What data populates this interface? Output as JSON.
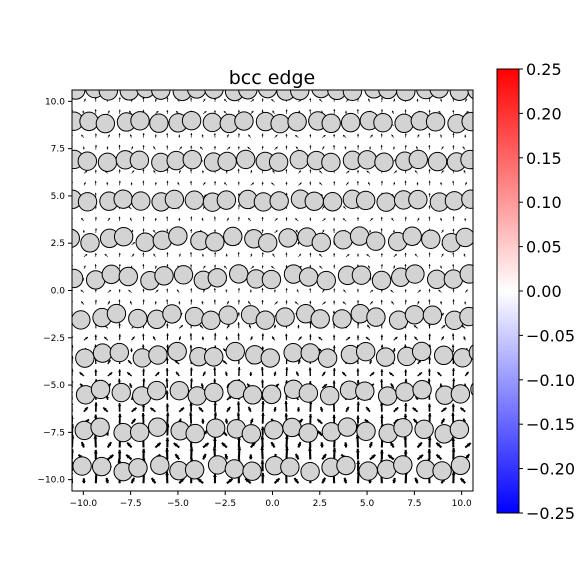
{
  "chart_data": {
    "type": "scatter",
    "title": "bcc edge",
    "xlabel": "",
    "ylabel": "",
    "xlim": [
      -10.6,
      10.6
    ],
    "ylim": [
      -10.6,
      10.6
    ],
    "x_ticks": [
      -10.0,
      -7.5,
      -5.0,
      -2.5,
      0.0,
      2.5,
      5.0,
      7.5,
      10.0
    ],
    "y_ticks": [
      -10.0,
      -7.5,
      -5.0,
      -2.5,
      0.0,
      2.5,
      5.0,
      7.5,
      10.0
    ],
    "x_tick_labels": [
      "−10.0",
      "−7.5",
      "−5.0",
      "−2.5",
      "0.0",
      "2.5",
      "5.0",
      "7.5",
      "10.0"
    ],
    "y_tick_labels": [
      "−10.0",
      "−7.5",
      "−5.0",
      "−2.5",
      "0.0",
      "2.5",
      "5.0",
      "7.5",
      "10.0"
    ],
    "grid": false,
    "atom_color": "#d3d3d3",
    "atom_edge_color": "#000000",
    "arrow_color": "#000000",
    "atom_rows": [
      {
        "y": 10.6,
        "x_start": -10.4,
        "dx": 0.92,
        "n": 24
      },
      {
        "y": 8.9,
        "x_start": -10.6,
        "dx": 0.92,
        "n": 24
      },
      {
        "y": 6.85,
        "x_start": -10.6,
        "dx": 0.92,
        "n": 24
      },
      {
        "y": 4.75,
        "x_start": -10.6,
        "dx": 0.92,
        "n": 24
      },
      {
        "y": 2.7,
        "x_start": -10.6,
        "dx": 0.95,
        "n": 23
      },
      {
        "y": 0.7,
        "x_start": -10.4,
        "dx": 0.95,
        "n": 23
      },
      {
        "y": -1.4,
        "x_start": -10.1,
        "dx": 0.98,
        "n": 22
      },
      {
        "y": -3.4,
        "x_start": -10.0,
        "dx": 1.0,
        "n": 22
      },
      {
        "y": -5.4,
        "x_start": -10.0,
        "dx": 1.0,
        "n": 22
      },
      {
        "y": -7.4,
        "x_start": -10.0,
        "dx": 1.0,
        "n": 22
      },
      {
        "y": -9.4,
        "x_start": -10.0,
        "dx": 1.0,
        "n": 22
      }
    ],
    "colorbar": {
      "colormap": "bwr",
      "vmin": -0.25,
      "vmax": 0.25,
      "ticks": [
        0.25,
        0.2,
        0.15,
        0.1,
        0.05,
        0.0,
        -0.05,
        -0.1,
        -0.15,
        -0.2,
        -0.25
      ],
      "tick_labels": [
        "0.25",
        "0.20",
        "0.15",
        "0.10",
        "0.05",
        "0.00",
        "−0.05",
        "−0.10",
        "−0.15",
        "−0.20",
        "−0.25"
      ],
      "colors": {
        "max": "#ff0000",
        "mid": "#ffffff",
        "min": "#0000ff"
      }
    }
  }
}
